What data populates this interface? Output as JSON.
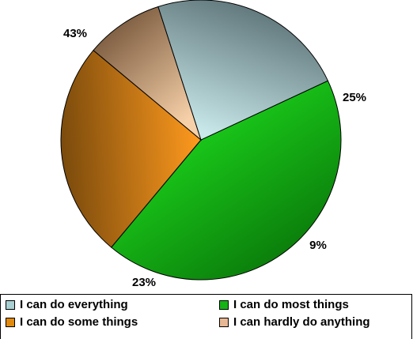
{
  "chart_data": {
    "type": "pie",
    "slices": [
      {
        "label": "I can do most things",
        "value": 43,
        "label_text": "43%",
        "color": "#13a813",
        "color_light": "#1ee01e",
        "color_dark": "#0a7a0a"
      },
      {
        "label": "I can do some things",
        "value": 25,
        "label_text": "25%",
        "color": "#d98a12",
        "color_light": "#ff9a1e",
        "color_dark": "#7a4a0c"
      },
      {
        "label": "I can hardly do anything",
        "value": 9,
        "label_text": "9%",
        "color": "#d8a882",
        "color_light": "#f6d0a8",
        "color_dark": "#7a5a3e"
      },
      {
        "label": "I can do everything",
        "value": 23,
        "label_text": "23%",
        "color": "#9bc6c8",
        "color_light": "#c8e8ea",
        "color_dark": "#5a7074"
      }
    ],
    "legend": {
      "placement": "bottom",
      "entries": [
        {
          "label": "I can do everything",
          "color": "#a9d0d2"
        },
        {
          "label": "I can do most things",
          "color": "#14b414"
        },
        {
          "label": "I can do some things",
          "color": "#e08a10"
        },
        {
          "label": "I can hardly do anything",
          "color": "#e8b894"
        }
      ]
    }
  }
}
